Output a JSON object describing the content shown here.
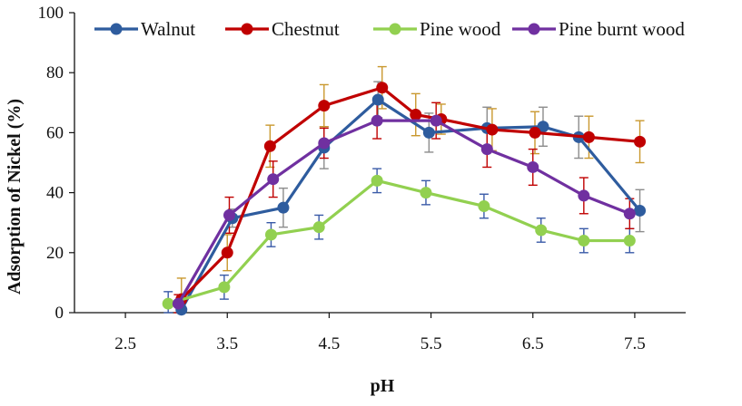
{
  "chart_data": {
    "type": "line",
    "title": "",
    "xlabel": "pH",
    "ylabel": "Adsorption of Nickel (%)",
    "xlim": [
      2.0,
      8.0
    ],
    "ylim": [
      0,
      100
    ],
    "x_ticks": [
      "2.5",
      "3.5",
      "4.5",
      "5.5",
      "6.5",
      "7.5"
    ],
    "x_tick_values": [
      2.5,
      3.5,
      4.5,
      5.5,
      6.5,
      7.5
    ],
    "y_ticks": [
      "0",
      "20",
      "40",
      "60",
      "80",
      "100"
    ],
    "y_tick_values": [
      0,
      20,
      40,
      60,
      80,
      100
    ],
    "grid": false,
    "legend_position": "top",
    "series": [
      {
        "name": "Walnut",
        "color": "#2E5C9E",
        "error_color": "#8C8C8C",
        "x": [
          3.05,
          3.55,
          4.05,
          4.45,
          4.98,
          5.48,
          6.05,
          6.6,
          6.95,
          7.55
        ],
        "y": [
          1,
          31.5,
          35,
          55,
          71,
          60,
          61.5,
          62,
          58.5,
          34
        ],
        "error": [
          2,
          3,
          6.5,
          7,
          6,
          6.5,
          7,
          6.5,
          7,
          7
        ]
      },
      {
        "name": "Chestnut",
        "color": "#C00000",
        "error_color": "#C9982E",
        "x": [
          3.05,
          3.5,
          3.92,
          4.45,
          5.02,
          5.35,
          5.6,
          6.1,
          6.52,
          7.05,
          7.55
        ],
        "y": [
          4.5,
          20,
          55.5,
          69,
          75,
          66,
          64.5,
          61,
          60,
          58.5,
          57
        ],
        "error": [
          7,
          6,
          7,
          7,
          7,
          7,
          5,
          7,
          7,
          7,
          7
        ]
      },
      {
        "name": "Pine wood",
        "color": "#92D050",
        "error_color": "#3A5BA8",
        "x": [
          2.92,
          3.47,
          3.93,
          4.4,
          4.97,
          5.45,
          6.02,
          6.58,
          7.0,
          7.45
        ],
        "y": [
          3,
          8.5,
          26,
          28.5,
          44,
          40,
          35.5,
          27.5,
          24,
          24
        ],
        "error": [
          4,
          4,
          4,
          4,
          4,
          4,
          4,
          4,
          4,
          4
        ]
      },
      {
        "name": "Pine burnt wood",
        "color": "#7030A0",
        "error_color": "#C00000",
        "x": [
          3.02,
          3.52,
          3.95,
          4.45,
          4.97,
          5.55,
          6.05,
          6.5,
          7.0,
          7.45
        ],
        "y": [
          3,
          32.5,
          44.5,
          56.5,
          64,
          64,
          54.5,
          48.5,
          39,
          33
        ],
        "error": [
          3,
          6,
          6,
          5,
          6,
          6,
          6,
          6,
          6,
          5
        ]
      }
    ]
  }
}
